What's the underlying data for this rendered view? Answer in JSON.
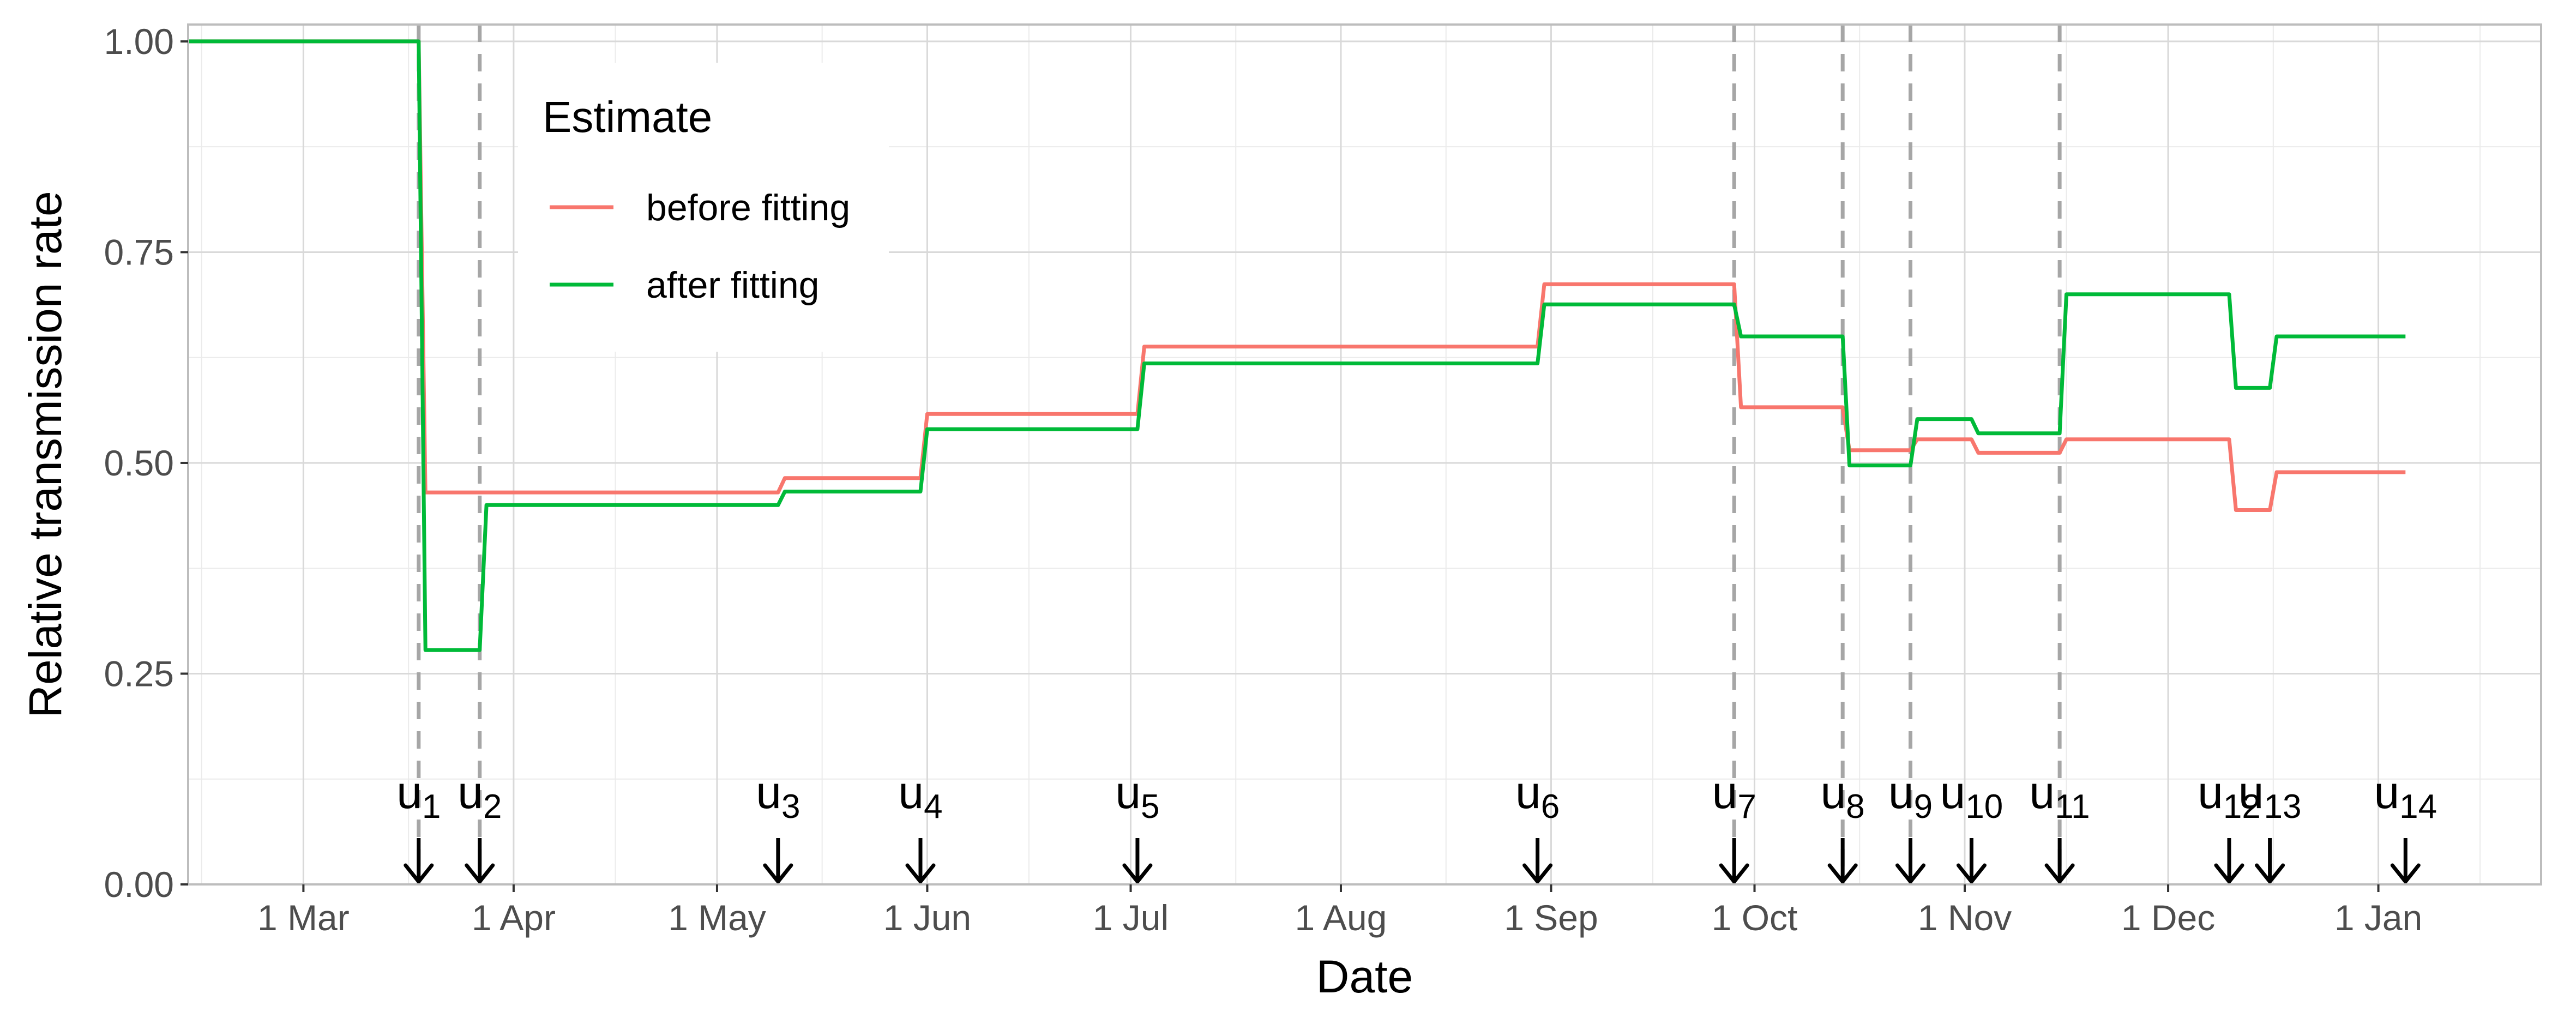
{
  "chart_data": {
    "type": "line",
    "xlabel": "Date",
    "ylabel": "Relative transmission rate",
    "ylim": [
      0,
      1.02
    ],
    "xlim": [
      "2020-02-13",
      "2021-01-25"
    ],
    "yticks": [
      {
        "value": 0.0,
        "label": "0.00"
      },
      {
        "value": 0.25,
        "label": "0.25"
      },
      {
        "value": 0.5,
        "label": "0.50"
      },
      {
        "value": 0.75,
        "label": "0.75"
      },
      {
        "value": 1.0,
        "label": "1.00"
      }
    ],
    "xticks": [
      {
        "date": "2020-03-01",
        "label": "1 Mar"
      },
      {
        "date": "2020-04-01",
        "label": "1 Apr"
      },
      {
        "date": "2020-05-01",
        "label": "1 May"
      },
      {
        "date": "2020-06-01",
        "label": "1 Jun"
      },
      {
        "date": "2020-07-01",
        "label": "1 Jul"
      },
      {
        "date": "2020-08-01",
        "label": "1 Aug"
      },
      {
        "date": "2020-09-01",
        "label": "1 Sep"
      },
      {
        "date": "2020-10-01",
        "label": "1 Oct"
      },
      {
        "date": "2020-11-01",
        "label": "1 Nov"
      },
      {
        "date": "2020-12-01",
        "label": "1 Dec"
      },
      {
        "date": "2021-01-01",
        "label": "1 Jan"
      }
    ],
    "grid": true,
    "legend": {
      "title": "Estimate",
      "placement": "top-left",
      "entries": [
        {
          "label": "before fitting",
          "color": "#f8766d"
        },
        {
          "label": "after fitting",
          "color": "#00ba38"
        }
      ]
    },
    "series": [
      {
        "name": "before fitting",
        "color": "#f8766d",
        "points": [
          [
            "2020-02-13",
            1.0
          ],
          [
            "2020-03-18",
            1.0
          ],
          [
            "2020-03-19",
            0.465
          ],
          [
            "2020-05-10",
            0.465
          ],
          [
            "2020-05-11",
            0.482
          ],
          [
            "2020-05-31",
            0.482
          ],
          [
            "2020-06-01",
            0.558
          ],
          [
            "2020-07-02",
            0.558
          ],
          [
            "2020-07-03",
            0.638
          ],
          [
            "2020-08-30",
            0.638
          ],
          [
            "2020-08-31",
            0.712
          ],
          [
            "2020-09-28",
            0.712
          ],
          [
            "2020-09-29",
            0.566
          ],
          [
            "2020-10-14",
            0.566
          ],
          [
            "2020-10-15",
            0.515
          ],
          [
            "2020-10-24",
            0.515
          ],
          [
            "2020-10-25",
            0.528
          ],
          [
            "2020-11-02",
            0.528
          ],
          [
            "2020-11-03",
            0.512
          ],
          [
            "2020-11-15",
            0.512
          ],
          [
            "2020-11-16",
            0.528
          ],
          [
            "2020-12-10",
            0.528
          ],
          [
            "2020-12-11",
            0.444
          ],
          [
            "2020-12-16",
            0.444
          ],
          [
            "2020-12-17",
            0.489
          ],
          [
            "2021-01-05",
            0.489
          ]
        ]
      },
      {
        "name": "after fitting",
        "color": "#00ba38",
        "points": [
          [
            "2020-02-13",
            1.0
          ],
          [
            "2020-03-18",
            1.0
          ],
          [
            "2020-03-19",
            0.278
          ],
          [
            "2020-03-27",
            0.278
          ],
          [
            "2020-03-28",
            0.45
          ],
          [
            "2020-05-10",
            0.45
          ],
          [
            "2020-05-11",
            0.466
          ],
          [
            "2020-05-31",
            0.466
          ],
          [
            "2020-06-01",
            0.54
          ],
          [
            "2020-07-02",
            0.54
          ],
          [
            "2020-07-03",
            0.618
          ],
          [
            "2020-08-30",
            0.618
          ],
          [
            "2020-08-31",
            0.688
          ],
          [
            "2020-09-28",
            0.688
          ],
          [
            "2020-09-29",
            0.65
          ],
          [
            "2020-10-14",
            0.65
          ],
          [
            "2020-10-15",
            0.497
          ],
          [
            "2020-10-24",
            0.497
          ],
          [
            "2020-10-25",
            0.552
          ],
          [
            "2020-11-02",
            0.552
          ],
          [
            "2020-11-03",
            0.535
          ],
          [
            "2020-11-15",
            0.535
          ],
          [
            "2020-11-16",
            0.7
          ],
          [
            "2020-12-10",
            0.7
          ],
          [
            "2020-12-11",
            0.589
          ],
          [
            "2020-12-16",
            0.589
          ],
          [
            "2020-12-17",
            0.65
          ],
          [
            "2021-01-05",
            0.65
          ]
        ]
      }
    ],
    "dashed_lines": [
      "2020-03-18",
      "2020-03-27",
      "2020-09-28",
      "2020-10-14",
      "2020-10-24",
      "2020-11-15"
    ],
    "change_points": [
      {
        "letter": "u",
        "index": "1",
        "date": "2020-03-18"
      },
      {
        "letter": "u",
        "index": "2",
        "date": "2020-03-27"
      },
      {
        "letter": "u",
        "index": "3",
        "date": "2020-05-10"
      },
      {
        "letter": "u",
        "index": "4",
        "date": "2020-05-31"
      },
      {
        "letter": "u",
        "index": "5",
        "date": "2020-07-02"
      },
      {
        "letter": "u",
        "index": "6",
        "date": "2020-08-30"
      },
      {
        "letter": "u",
        "index": "7",
        "date": "2020-09-28"
      },
      {
        "letter": "u",
        "index": "8",
        "date": "2020-10-14"
      },
      {
        "letter": "u",
        "index": "9",
        "date": "2020-10-24"
      },
      {
        "letter": "u",
        "index": "10",
        "date": "2020-11-02"
      },
      {
        "letter": "u",
        "index": "11",
        "date": "2020-11-15"
      },
      {
        "letter": "u",
        "index": "12",
        "date": "2020-12-10"
      },
      {
        "letter": "u",
        "index": "13",
        "date": "2020-12-16"
      },
      {
        "letter": "u",
        "index": "14",
        "date": "2021-01-05"
      }
    ]
  }
}
